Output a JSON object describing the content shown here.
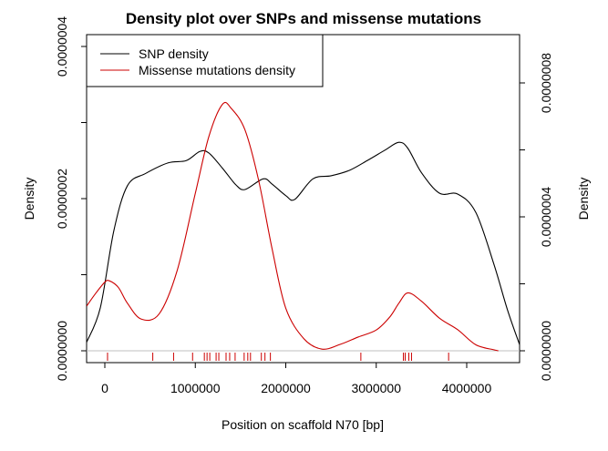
{
  "chart_data": {
    "type": "line",
    "title": "Density plot over SNPs and missense mutations",
    "xlabel": "Position on scaffold N70 [bp]",
    "ylabel_left": "Density",
    "ylabel_right": "Density",
    "xlim": [
      -200000,
      4600000
    ],
    "ylim_left": [
      0,
      4e-07
    ],
    "ylim_right": [
      0,
      9e-07
    ],
    "x_ticks": [
      0,
      1000000,
      2000000,
      3000000,
      4000000
    ],
    "x_tick_labels": [
      "0",
      "1000000",
      "2000000",
      "3000000",
      "4000000"
    ],
    "y_left_ticks": [
      0,
      2e-07,
      4e-07
    ],
    "y_left_tick_labels": [
      "0.0000000",
      "0.0000002",
      "0.0000004"
    ],
    "y_left_minor_ticks": [
      1e-07,
      3e-07
    ],
    "y_right_ticks": [
      0,
      4e-07,
      8e-07
    ],
    "y_right_tick_labels": [
      "0.0000000",
      "0.0000004",
      "0.0000008"
    ],
    "y_right_minor_ticks": [
      2e-07,
      6e-07
    ],
    "legend": {
      "position": "top-left",
      "entries": [
        "SNP density",
        "Missense mutations density"
      ]
    },
    "grid": false,
    "series": [
      {
        "name": "SNP density",
        "axis": "left",
        "color": "#000000",
        "x": [
          -200000,
          -50000,
          100000,
          250000,
          450000,
          700000,
          900000,
          1050000,
          1150000,
          1300000,
          1450000,
          1550000,
          1750000,
          1850000,
          2000000,
          2100000,
          2300000,
          2500000,
          2700000,
          2900000,
          3100000,
          3250000,
          3350000,
          3500000,
          3700000,
          3900000,
          4100000,
          4300000,
          4450000,
          4600000
        ],
        "y": [
          1.15e-08,
          5.65e-08,
          1.58e-07,
          2.17e-07,
          2.33e-07,
          2.47e-07,
          2.5e-07,
          2.62e-07,
          2.6e-07,
          2.4e-07,
          2.18e-07,
          2.12e-07,
          2.26e-07,
          2.19e-07,
          2.04e-07,
          1.99e-07,
          2.26e-07,
          2.3e-07,
          2.37e-07,
          2.5e-07,
          2.64e-07,
          2.74e-07,
          2.66e-07,
          2.34e-07,
          2.07e-07,
          2.06e-07,
          1.82e-07,
          1.14e-07,
          5.4e-08,
          8e-09
        ]
      },
      {
        "name": "Missense mutations density",
        "axis": "right",
        "color": "#cc0000",
        "x": [
          -200000,
          -100000,
          0,
          50000,
          150000,
          250000,
          400000,
          600000,
          800000,
          1000000,
          1150000,
          1300000,
          1400000,
          1550000,
          1700000,
          1850000,
          2000000,
          2200000,
          2400000,
          2600000,
          2800000,
          3000000,
          3150000,
          3250000,
          3350000,
          3500000,
          3700000,
          3900000,
          4100000,
          4300000,
          4350000
        ],
        "y": [
          1.34e-07,
          1.72e-07,
          2.05e-07,
          2.09e-07,
          1.89e-07,
          1.42e-07,
          9.5e-08,
          1.1e-07,
          2.4e-07,
          4.7e-07,
          6.4e-07,
          7.36e-07,
          7.23e-07,
          6.59e-07,
          5.09e-07,
          3.03e-07,
          1.27e-07,
          3.6e-08,
          5e-09,
          1.9e-08,
          4.1e-08,
          6.2e-08,
          1.01e-07,
          1.42e-07,
          1.73e-07,
          1.48e-07,
          9.7e-08,
          6.3e-08,
          1.8e-08,
          3e-09,
          0.0
        ]
      }
    ],
    "rug": {
      "color": "#cc0000",
      "x": [
        30000,
        530000,
        760000,
        970000,
        1100000,
        1130000,
        1160000,
        1230000,
        1260000,
        1340000,
        1380000,
        1440000,
        1540000,
        1580000,
        1610000,
        1730000,
        1770000,
        1830000,
        2830000,
        3300000,
        3320000,
        3360000,
        3390000,
        3800000
      ]
    },
    "baseline": {
      "y": 0,
      "color": "#bfbfbf"
    }
  }
}
